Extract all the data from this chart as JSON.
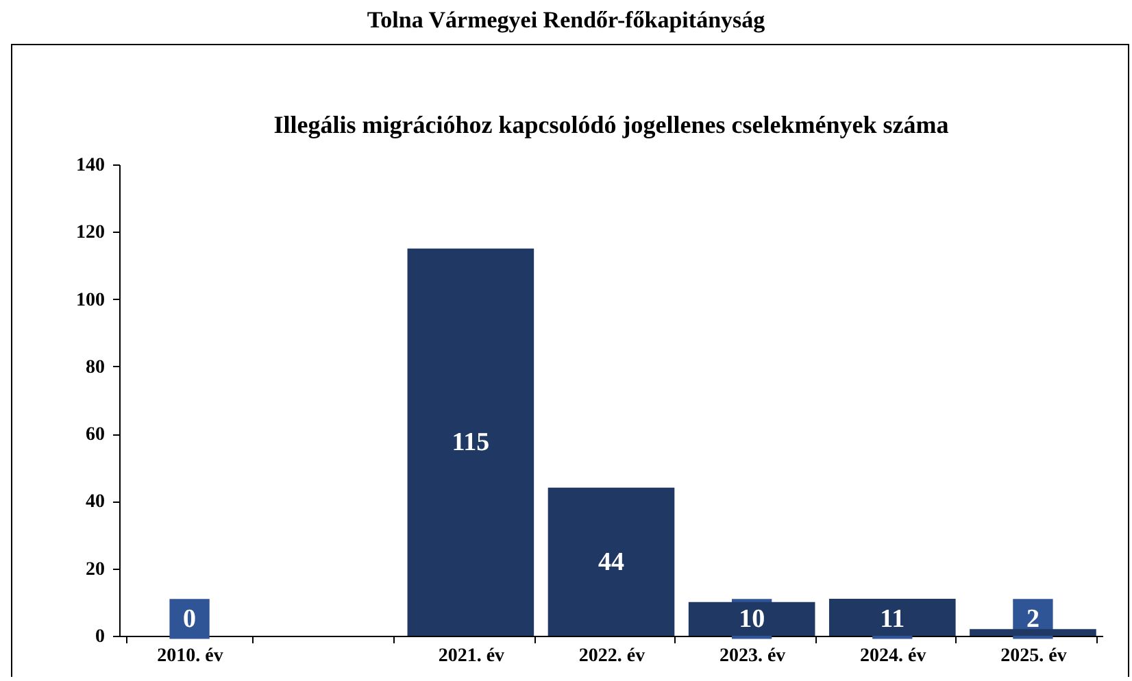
{
  "chart_data": {
    "type": "bar",
    "title": "Tolna Vármegyei Rendőr-főkapitányság",
    "subtitle": "Illegális migrációhoz kapcsolódó jogellenes cselekmények száma",
    "categories": [
      "2010. év",
      null,
      "2021. év",
      "2022. év",
      "2023. év",
      "2024. év",
      "2025. év"
    ],
    "values": [
      0,
      null,
      115,
      44,
      10,
      11,
      2
    ],
    "color": "#1f3864",
    "data_labels": true,
    "ylim": [
      0,
      140
    ],
    "yticks": [
      0,
      20,
      40,
      60,
      80,
      100,
      120,
      140
    ]
  }
}
